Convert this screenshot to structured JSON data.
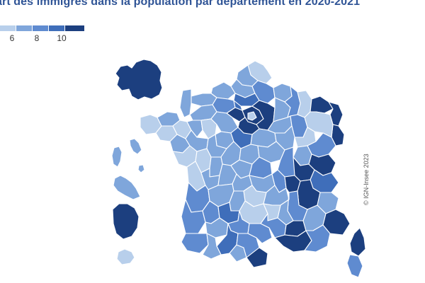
{
  "title": "art des immigrés dans la population par département en 2020-2021",
  "legend": {
    "colors": [
      "#b8cfeb",
      "#7fa6db",
      "#5f8bd0",
      "#3f6eba",
      "#1c3f7f"
    ],
    "ticks": [
      "6",
      "8",
      "10"
    ]
  },
  "credit": "© IGN-Insee 2023",
  "palette": {
    "c1": "#b8cfeb",
    "c2": "#7fa6db",
    "c3": "#5f8bd0",
    "c4": "#3f6eba",
    "c5": "#1c3f7f"
  }
}
